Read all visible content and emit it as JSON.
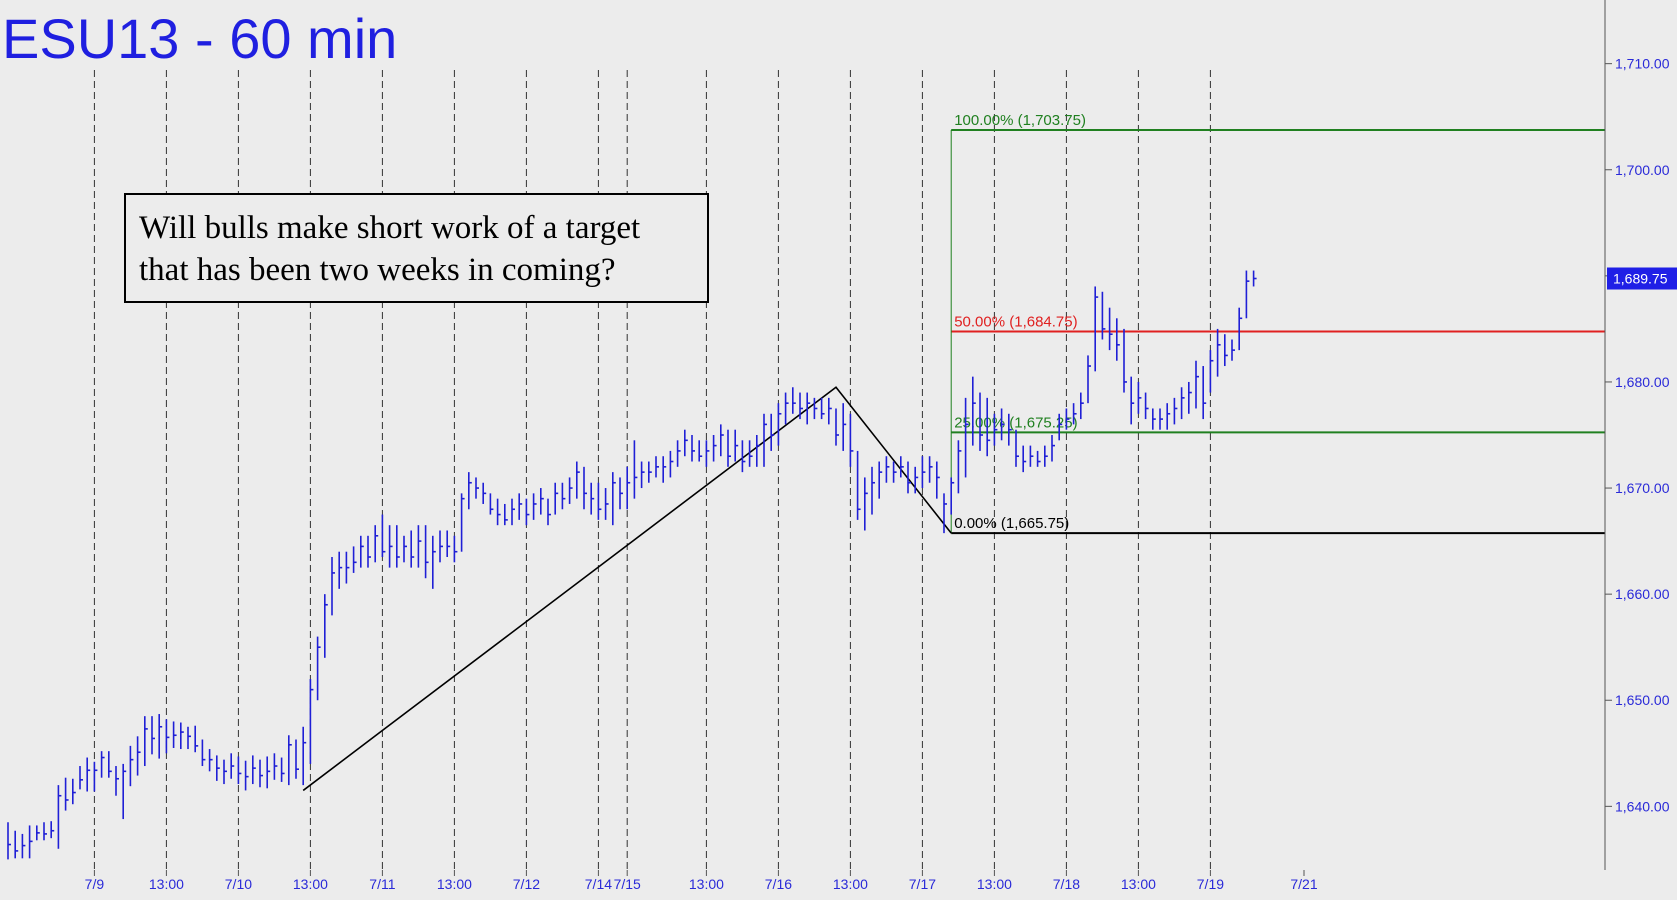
{
  "title": "ESU13 - 60 min",
  "annotation": {
    "line1": "Will bulls make short work of a target",
    "line2": "that has been two weeks in coming?"
  },
  "colors": {
    "background": "#ececec",
    "bars": "#1f1fd6",
    "title": "#1f1fe0",
    "axis_text": "#2a2ad8",
    "fib_100": "#208020",
    "fib_50": "#e02020",
    "fib_25": "#208020",
    "fib_0": "#000000",
    "last_price_box": "#1f1fe6"
  },
  "chart_data": {
    "type": "ohlc",
    "symbol": "ESU13",
    "interval": "60 min",
    "ylim": [
      1634,
      1716
    ],
    "y_ticks": [
      "1,640.00",
      "1,650.00",
      "1,660.00",
      "1,670.00",
      "1,680.00",
      "1,690.00",
      "1,700.00",
      "1,710.00"
    ],
    "y_tick_values": [
      1640,
      1650,
      1660,
      1670,
      1680,
      1690,
      1700,
      1710
    ],
    "x_tick_labels": [
      "7/9",
      "13:00",
      "7/10",
      "13:00",
      "7/11",
      "13:00",
      "7/12",
      "7/14",
      "7/15",
      "13:00",
      "7/16",
      "13:00",
      "7/17",
      "13:00",
      "7/18",
      "13:00",
      "7/19",
      "7/21"
    ],
    "x_tick_index": [
      12,
      22,
      32,
      42,
      52,
      62,
      72,
      82,
      86,
      97,
      107,
      117,
      127,
      137,
      147,
      157,
      167,
      180
    ],
    "last_price": "1,689.75",
    "fibonacci": [
      {
        "level": "100.00%",
        "price": 1703.75,
        "label": "100.00% (1,703.75)",
        "color": "#208020"
      },
      {
        "level": "50.00%",
        "price": 1684.75,
        "label": "50.00% (1,684.75)",
        "color": "#e02020"
      },
      {
        "level": "25.00%",
        "price": 1675.25,
        "label": "25.00% (1,675.25)",
        "color": "#208020"
      },
      {
        "level": "0.00%",
        "price": 1665.75,
        "label": "0.00% (1,665.75)",
        "color": "#000000"
      }
    ],
    "fib_start_index": 131,
    "swing_line": [
      {
        "i": 41,
        "price": 1641.5
      },
      {
        "i": 115,
        "price": 1679.5
      },
      {
        "i": 131,
        "price": 1665.75
      }
    ],
    "bars": [
      {
        "low": 1635.0,
        "high": 1638.5,
        "close": 1636.4
      },
      {
        "low": 1635.1,
        "high": 1637.7,
        "close": 1635.8
      },
      {
        "low": 1635.1,
        "high": 1637.4,
        "close": 1636.3
      },
      {
        "low": 1635.1,
        "high": 1638.2,
        "close": 1636.7
      },
      {
        "low": 1636.8,
        "high": 1638.2,
        "close": 1637.5
      },
      {
        "low": 1636.8,
        "high": 1638.5,
        "close": 1637.4
      },
      {
        "low": 1637.0,
        "high": 1638.6,
        "close": 1637.7
      },
      {
        "low": 1636.0,
        "high": 1642.0,
        "close": 1641.0
      },
      {
        "low": 1639.6,
        "high": 1642.7,
        "close": 1640.6
      },
      {
        "low": 1640.2,
        "high": 1642.6,
        "close": 1641.3
      },
      {
        "low": 1641.6,
        "high": 1643.8,
        "close": 1642.5
      },
      {
        "low": 1641.4,
        "high": 1644.6,
        "close": 1643.4
      },
      {
        "low": 1641.4,
        "high": 1644.2,
        "close": 1643.4
      },
      {
        "low": 1642.7,
        "high": 1645.2,
        "close": 1644.6
      },
      {
        "low": 1642.7,
        "high": 1645.2,
        "close": 1643.3
      },
      {
        "low": 1641.0,
        "high": 1643.8,
        "close": 1642.6
      },
      {
        "low": 1638.8,
        "high": 1644.0,
        "close": 1643.3
      },
      {
        "low": 1641.9,
        "high": 1645.7,
        "close": 1644.4
      },
      {
        "low": 1642.9,
        "high": 1646.6,
        "close": 1645.1
      },
      {
        "low": 1643.8,
        "high": 1648.5,
        "close": 1647.3
      },
      {
        "low": 1644.9,
        "high": 1648.5,
        "close": 1646.4
      },
      {
        "low": 1644.5,
        "high": 1648.7,
        "close": 1647.5
      },
      {
        "low": 1645.0,
        "high": 1648.2,
        "close": 1646.5
      },
      {
        "low": 1645.5,
        "high": 1648.0,
        "close": 1646.7
      },
      {
        "low": 1645.4,
        "high": 1647.9,
        "close": 1647.0
      },
      {
        "low": 1645.4,
        "high": 1647.5,
        "close": 1646.6
      },
      {
        "low": 1645.1,
        "high": 1647.6,
        "close": 1645.7
      },
      {
        "low": 1643.8,
        "high": 1646.3,
        "close": 1644.4
      },
      {
        "low": 1643.3,
        "high": 1645.4,
        "close": 1644.4
      },
      {
        "low": 1642.4,
        "high": 1644.8,
        "close": 1643.6
      },
      {
        "low": 1642.1,
        "high": 1644.4,
        "close": 1643.3
      },
      {
        "low": 1642.6,
        "high": 1645.0,
        "close": 1643.8
      },
      {
        "low": 1642.1,
        "high": 1644.7,
        "close": 1643.1
      },
      {
        "low": 1641.5,
        "high": 1644.3,
        "close": 1642.8
      },
      {
        "low": 1642.1,
        "high": 1644.8,
        "close": 1643.6
      },
      {
        "low": 1641.8,
        "high": 1644.4,
        "close": 1642.9
      },
      {
        "low": 1641.7,
        "high": 1644.7,
        "close": 1643.3
      },
      {
        "low": 1642.5,
        "high": 1645.0,
        "close": 1643.8
      },
      {
        "low": 1642.3,
        "high": 1644.6,
        "close": 1643.1
      },
      {
        "low": 1642.0,
        "high": 1646.7,
        "close": 1645.8
      },
      {
        "low": 1642.6,
        "high": 1646.3,
        "close": 1643.5
      },
      {
        "low": 1642.0,
        "high": 1647.5,
        "close": 1646.0
      },
      {
        "low": 1644.0,
        "high": 1652.0,
        "close": 1651.0
      },
      {
        "low": 1650.0,
        "high": 1656.0,
        "close": 1655.0
      },
      {
        "low": 1654.0,
        "high": 1660.0,
        "close": 1659.0
      },
      {
        "low": 1658.0,
        "high": 1663.5,
        "close": 1662.0
      },
      {
        "low": 1660.5,
        "high": 1664.0,
        "close": 1662.5
      },
      {
        "low": 1661.0,
        "high": 1664.0,
        "close": 1662.5
      },
      {
        "low": 1662.0,
        "high": 1664.5,
        "close": 1663.0
      },
      {
        "low": 1662.5,
        "high": 1665.5,
        "close": 1664.5
      },
      {
        "low": 1662.5,
        "high": 1665.5,
        "close": 1663.5
      },
      {
        "low": 1663.0,
        "high": 1666.5,
        "close": 1665.5
      },
      {
        "low": 1663.5,
        "high": 1667.5,
        "close": 1664.0
      },
      {
        "low": 1662.5,
        "high": 1666.5,
        "close": 1664.5
      },
      {
        "low": 1662.5,
        "high": 1666.5,
        "close": 1663.5
      },
      {
        "low": 1663.0,
        "high": 1665.5,
        "close": 1664.5
      },
      {
        "low": 1662.5,
        "high": 1666.0,
        "close": 1663.5
      },
      {
        "low": 1662.5,
        "high": 1666.5,
        "close": 1665.0
      },
      {
        "low": 1661.5,
        "high": 1666.5,
        "close": 1663.0
      },
      {
        "low": 1660.5,
        "high": 1665.5,
        "close": 1664.0
      },
      {
        "low": 1663.0,
        "high": 1666.0,
        "close": 1664.5
      },
      {
        "low": 1663.5,
        "high": 1666.0,
        "close": 1664.5
      },
      {
        "low": 1663.0,
        "high": 1665.5,
        "close": 1664.0
      },
      {
        "low": 1664.0,
        "high": 1669.5,
        "close": 1669.0
      },
      {
        "low": 1668.0,
        "high": 1671.5,
        "close": 1670.5
      },
      {
        "low": 1669.0,
        "high": 1671.0,
        "close": 1670.0
      },
      {
        "low": 1668.5,
        "high": 1670.5,
        "close": 1669.5
      },
      {
        "low": 1667.5,
        "high": 1669.5,
        "close": 1668.0
      },
      {
        "low": 1666.5,
        "high": 1669.0,
        "close": 1667.5
      },
      {
        "low": 1666.5,
        "high": 1668.5,
        "close": 1667.0
      },
      {
        "low": 1666.5,
        "high": 1669.0,
        "close": 1668.0
      },
      {
        "low": 1667.0,
        "high": 1669.5,
        "close": 1668.5
      },
      {
        "low": 1666.5,
        "high": 1669.0,
        "close": 1667.5
      },
      {
        "low": 1667.0,
        "high": 1669.5,
        "close": 1668.5
      },
      {
        "low": 1667.5,
        "high": 1670.0,
        "close": 1669.0
      },
      {
        "low": 1666.5,
        "high": 1669.0,
        "close": 1667.5
      },
      {
        "low": 1667.5,
        "high": 1670.5,
        "close": 1669.5
      },
      {
        "low": 1668.0,
        "high": 1670.5,
        "close": 1669.0
      },
      {
        "low": 1668.5,
        "high": 1671.0,
        "close": 1670.0
      },
      {
        "low": 1669.0,
        "high": 1672.5,
        "close": 1671.5
      },
      {
        "low": 1668.0,
        "high": 1672.0,
        "close": 1669.5
      },
      {
        "low": 1667.5,
        "high": 1670.5,
        "close": 1669.0
      },
      {
        "low": 1667.0,
        "high": 1670.5,
        "close": 1668.0
      },
      {
        "low": 1667.0,
        "high": 1670.0,
        "close": 1668.5
      },
      {
        "low": 1666.5,
        "high": 1671.5,
        "close": 1670.5
      },
      {
        "low": 1668.0,
        "high": 1671.0,
        "close": 1669.5
      },
      {
        "low": 1668.0,
        "high": 1672.0,
        "close": 1670.5
      },
      {
        "low": 1669.0,
        "high": 1674.5,
        "close": 1671.0
      },
      {
        "low": 1670.0,
        "high": 1672.5,
        "close": 1671.5
      },
      {
        "low": 1670.5,
        "high": 1672.5,
        "close": 1671.5
      },
      {
        "low": 1671.0,
        "high": 1673.0,
        "close": 1672.0
      },
      {
        "low": 1670.5,
        "high": 1673.0,
        "close": 1672.0
      },
      {
        "low": 1671.0,
        "high": 1673.5,
        "close": 1672.5
      },
      {
        "low": 1672.0,
        "high": 1674.5,
        "close": 1673.5
      },
      {
        "low": 1673.0,
        "high": 1675.5,
        "close": 1674.5
      },
      {
        "low": 1672.5,
        "high": 1675.0,
        "close": 1673.5
      },
      {
        "low": 1672.5,
        "high": 1674.5,
        "close": 1673.0
      },
      {
        "low": 1672.0,
        "high": 1674.5,
        "close": 1673.5
      },
      {
        "low": 1672.5,
        "high": 1675.0,
        "close": 1674.0
      },
      {
        "low": 1673.0,
        "high": 1676.0,
        "close": 1675.0
      },
      {
        "low": 1672.0,
        "high": 1675.5,
        "close": 1673.0
      },
      {
        "low": 1672.5,
        "high": 1675.5,
        "close": 1674.0
      },
      {
        "low": 1671.5,
        "high": 1674.5,
        "close": 1672.5
      },
      {
        "low": 1672.0,
        "high": 1674.5,
        "close": 1673.0
      },
      {
        "low": 1672.0,
        "high": 1675.0,
        "close": 1674.0
      },
      {
        "low": 1672.0,
        "high": 1677.0,
        "close": 1676.0
      },
      {
        "low": 1673.5,
        "high": 1677.0,
        "close": 1675.0
      },
      {
        "low": 1674.0,
        "high": 1678.0,
        "close": 1677.0
      },
      {
        "low": 1676.0,
        "high": 1679.0,
        "close": 1678.0
      },
      {
        "low": 1677.0,
        "high": 1679.5,
        "close": 1678.0
      },
      {
        "low": 1676.5,
        "high": 1679.0,
        "close": 1677.5
      },
      {
        "low": 1676.0,
        "high": 1679.0,
        "close": 1678.0
      },
      {
        "low": 1676.5,
        "high": 1678.5,
        "close": 1677.5
      },
      {
        "low": 1676.5,
        "high": 1678.5,
        "close": 1677.0
      },
      {
        "low": 1676.0,
        "high": 1678.5,
        "close": 1677.5
      },
      {
        "low": 1674.0,
        "high": 1677.5,
        "close": 1675.0
      },
      {
        "low": 1673.5,
        "high": 1678.0,
        "close": 1676.0
      },
      {
        "low": 1672.0,
        "high": 1677.0,
        "close": 1673.5
      },
      {
        "low": 1667.0,
        "high": 1673.5,
        "close": 1668.0
      },
      {
        "low": 1666.0,
        "high": 1671.0,
        "close": 1669.5
      },
      {
        "low": 1667.5,
        "high": 1672.0,
        "close": 1670.5
      },
      {
        "low": 1669.0,
        "high": 1672.5,
        "close": 1671.5
      },
      {
        "low": 1670.5,
        "high": 1673.0,
        "close": 1672.0
      },
      {
        "low": 1670.5,
        "high": 1672.5,
        "close": 1671.5
      },
      {
        "low": 1671.0,
        "high": 1673.0,
        "close": 1672.0
      },
      {
        "low": 1669.5,
        "high": 1672.5,
        "close": 1670.5
      },
      {
        "low": 1669.5,
        "high": 1672.0,
        "close": 1671.0
      },
      {
        "low": 1670.0,
        "high": 1673.0,
        "close": 1671.5
      },
      {
        "low": 1670.5,
        "high": 1673.0,
        "close": 1672.0
      },
      {
        "low": 1669.0,
        "high": 1672.5,
        "close": 1671.0
      },
      {
        "low": 1665.75,
        "high": 1669.5,
        "close": 1668.5
      },
      {
        "low": 1667.5,
        "high": 1671.0,
        "close": 1670.5
      },
      {
        "low": 1669.5,
        "high": 1674.5,
        "close": 1673.5
      },
      {
        "low": 1671.0,
        "high": 1678.5,
        "close": 1676.0
      },
      {
        "low": 1674.0,
        "high": 1680.5,
        "close": 1678.0
      },
      {
        "low": 1673.5,
        "high": 1679.0,
        "close": 1675.0
      },
      {
        "low": 1673.0,
        "high": 1678.5,
        "close": 1674.5
      },
      {
        "low": 1674.0,
        "high": 1677.0,
        "close": 1675.5
      },
      {
        "low": 1674.5,
        "high": 1677.5,
        "close": 1676.0
      },
      {
        "low": 1674.0,
        "high": 1677.0,
        "close": 1675.5
      },
      {
        "low": 1672.0,
        "high": 1675.5,
        "close": 1673.0
      },
      {
        "low": 1671.5,
        "high": 1674.0,
        "close": 1672.5
      },
      {
        "low": 1672.0,
        "high": 1674.0,
        "close": 1673.0
      },
      {
        "low": 1672.0,
        "high": 1673.5,
        "close": 1672.5
      },
      {
        "low": 1672.0,
        "high": 1674.0,
        "close": 1673.0
      },
      {
        "low": 1672.5,
        "high": 1675.0,
        "close": 1674.0
      },
      {
        "low": 1674.5,
        "high": 1677.0,
        "close": 1676.0
      },
      {
        "low": 1675.5,
        "high": 1677.5,
        "close": 1676.5
      },
      {
        "low": 1676.0,
        "high": 1678.0,
        "close": 1677.0
      },
      {
        "low": 1676.5,
        "high": 1679.0,
        "close": 1678.0
      },
      {
        "low": 1678.0,
        "high": 1682.5,
        "close": 1681.5
      },
      {
        "low": 1681.0,
        "high": 1689.0,
        "close": 1688.0
      },
      {
        "low": 1684.0,
        "high": 1688.5,
        "close": 1685.0
      },
      {
        "low": 1683.0,
        "high": 1687.0,
        "close": 1684.5
      },
      {
        "low": 1682.0,
        "high": 1686.0,
        "close": 1683.5
      },
      {
        "low": 1679.0,
        "high": 1685.0,
        "close": 1680.0
      },
      {
        "low": 1676.0,
        "high": 1680.5,
        "close": 1678.0
      },
      {
        "low": 1677.0,
        "high": 1680.0,
        "close": 1678.5
      },
      {
        "low": 1676.5,
        "high": 1679.0,
        "close": 1677.5
      },
      {
        "low": 1675.5,
        "high": 1677.5,
        "close": 1676.5
      },
      {
        "low": 1675.5,
        "high": 1677.5,
        "close": 1676.5
      },
      {
        "low": 1675.5,
        "high": 1678.0,
        "close": 1677.0
      },
      {
        "low": 1676.0,
        "high": 1678.5,
        "close": 1677.5
      },
      {
        "low": 1676.5,
        "high": 1679.5,
        "close": 1678.5
      },
      {
        "low": 1677.0,
        "high": 1680.0,
        "close": 1679.0
      },
      {
        "low": 1677.5,
        "high": 1682.0,
        "close": 1680.5
      },
      {
        "low": 1676.5,
        "high": 1681.5,
        "close": 1678.0
      },
      {
        "low": 1679.0,
        "high": 1683.0,
        "close": 1682.0
      },
      {
        "low": 1680.5,
        "high": 1685.0,
        "close": 1683.5
      },
      {
        "low": 1681.5,
        "high": 1684.5,
        "close": 1682.5
      },
      {
        "low": 1682.0,
        "high": 1684.0,
        "close": 1683.0
      },
      {
        "low": 1683.0,
        "high": 1687.0,
        "close": 1686.0
      },
      {
        "low": 1686.0,
        "high": 1690.5,
        "close": 1689.5
      },
      {
        "low": 1689.0,
        "high": 1690.5,
        "close": 1689.75
      }
    ]
  }
}
